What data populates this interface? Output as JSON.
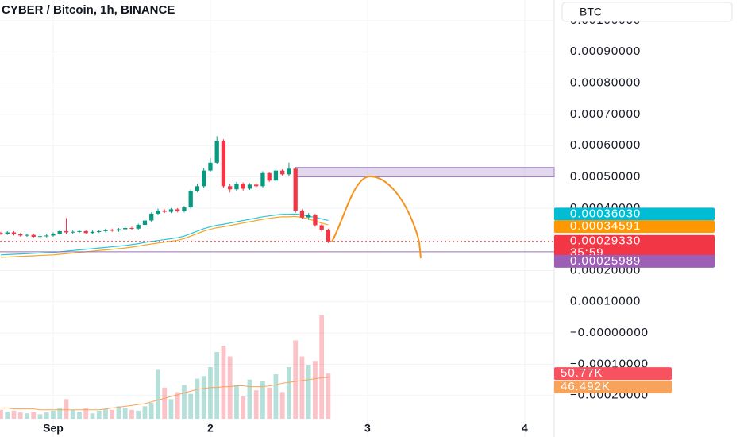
{
  "chart_data": {
    "type": "candlestick",
    "title": "CYBER / Bitcoin, 1h, BINANCE",
    "currency": "BTC",
    "x": [
      -8,
      -7,
      -6,
      -5,
      -4,
      -3,
      -2,
      -1,
      0,
      1,
      2,
      3,
      4,
      5,
      6,
      7,
      8,
      9,
      10,
      11,
      12,
      13,
      14,
      15,
      16,
      17,
      18,
      19,
      20,
      21,
      22,
      23,
      24,
      25,
      26,
      27,
      28,
      29,
      30,
      31,
      32,
      33,
      34,
      35,
      36,
      37,
      38,
      39,
      40,
      41,
      42
    ],
    "open": [
      0.00032,
      0.000318,
      0.000322,
      0.000316,
      0.000312,
      0.000314,
      0.000308,
      0.00031,
      0.000312,
      0.000318,
      0.000326,
      0.000322,
      0.000324,
      0.000326,
      0.00032,
      0.000324,
      0.000326,
      0.00033,
      0.000328,
      0.000332,
      0.000336,
      0.000334,
      0.000346,
      0.00036,
      0.000382,
      0.000392,
      0.000388,
      0.000396,
      0.00039,
      0.000402,
      0.000455,
      0.00047,
      0.00052,
      0.000545,
      0.000615,
      0.00047,
      0.00046,
      0.000478,
      0.000462,
      0.000475,
      0.00047,
      0.000512,
      0.000488,
      0.00052,
      0.000508,
      0.000526,
      0.000392,
      0.00037,
      0.000378,
      0.000345,
      0.00033
    ],
    "high": [
      0.000324,
      0.000326,
      0.000326,
      0.00032,
      0.000318,
      0.000318,
      0.000314,
      0.000316,
      0.000322,
      0.00033,
      0.000368,
      0.000328,
      0.00033,
      0.00033,
      0.000328,
      0.00033,
      0.000334,
      0.000334,
      0.000336,
      0.00034,
      0.00034,
      0.00035,
      0.000364,
      0.000386,
      0.000398,
      0.000396,
      0.0004,
      0.0004,
      0.000406,
      0.00046,
      0.000478,
      0.000528,
      0.00056,
      0.00063,
      0.00062,
      0.000478,
      0.000484,
      0.000482,
      0.00048,
      0.00048,
      0.000518,
      0.000515,
      0.000526,
      0.000524,
      0.000545,
      0.00053,
      0.000396,
      0.000384,
      0.000382,
      0.00035,
      0.000334
    ],
    "low": [
      0.000314,
      0.000314,
      0.000312,
      0.000308,
      0.000308,
      0.000304,
      0.000304,
      0.000306,
      0.000308,
      0.000314,
      0.000318,
      0.000318,
      0.00032,
      0.000316,
      0.000316,
      0.00032,
      0.000322,
      0.000324,
      0.000324,
      0.000328,
      0.00033,
      0.00033,
      0.000342,
      0.000356,
      0.000378,
      0.000384,
      0.000384,
      0.000386,
      0.000386,
      0.000398,
      0.00045,
      0.000465,
      0.000515,
      0.00054,
      0.000465,
      0.00045,
      0.000455,
      0.000456,
      0.000458,
      0.000464,
      0.000466,
      0.000484,
      0.000484,
      0.000504,
      0.000504,
      0.000385,
      0.000364,
      0.000362,
      0.00034,
      0.000324,
      0.000288
    ],
    "close": [
      0.000318,
      0.000322,
      0.000316,
      0.000312,
      0.000314,
      0.000308,
      0.00031,
      0.000312,
      0.000318,
      0.000326,
      0.000322,
      0.000324,
      0.000326,
      0.00032,
      0.000324,
      0.000326,
      0.00033,
      0.000328,
      0.000332,
      0.000336,
      0.000334,
      0.000346,
      0.00036,
      0.000382,
      0.000392,
      0.000388,
      0.000396,
      0.00039,
      0.000402,
      0.000455,
      0.00047,
      0.00052,
      0.000545,
      0.000615,
      0.00047,
      0.00046,
      0.000478,
      0.000462,
      0.000475,
      0.00047,
      0.000512,
      0.000488,
      0.00052,
      0.000508,
      0.000526,
      0.000392,
      0.00037,
      0.000378,
      0.000345,
      0.00033,
      0.000293
    ],
    "up_color": "#089981",
    "down_color": "#f23645",
    "xlim": [
      -8.12,
      76.5
    ],
    "xticks": [
      {
        "value": 0,
        "label": "Sep"
      },
      {
        "value": 24,
        "label": "2"
      },
      {
        "value": 48,
        "label": "3"
      },
      {
        "value": 72,
        "label": "4"
      }
    ],
    "ylim": [
      -0.000333,
      0.001066
    ],
    "yticks": [
      {
        "value": 0.001,
        "label": "0.00100000"
      },
      {
        "value": 0.0009,
        "label": "0.00090000"
      },
      {
        "value": 0.0008,
        "label": "0.00080000"
      },
      {
        "value": 0.0007,
        "label": "0.00070000"
      },
      {
        "value": 0.0006,
        "label": "0.00060000"
      },
      {
        "value": 0.0005,
        "label": "0.00050000"
      },
      {
        "value": 0.0004,
        "label": "0.00040000"
      },
      {
        "value": 0.0002,
        "label": "0.00020000"
      },
      {
        "value": 0.0001,
        "label": "0.00010000"
      },
      {
        "value": 0,
        "label": "−0.00000000"
      },
      {
        "value": -0.0001,
        "label": "−0.00010000"
      },
      {
        "value": -0.0002,
        "label": "−0.00020000"
      }
    ],
    "grid": true,
    "moving_averages": [
      {
        "color": "#26c6da",
        "values": [
          0.00025,
          0.000251,
          0.000252,
          0.000253,
          0.000254,
          0.000255,
          0.000256,
          0.000257,
          0.000258,
          0.00026,
          0.000262,
          0.000264,
          0.000266,
          0.000268,
          0.00027,
          0.000272,
          0.000274,
          0.000276,
          0.000278,
          0.00028,
          0.000283,
          0.000286,
          0.00029,
          0.000293,
          0.000296,
          0.000299,
          0.000302,
          0.000305,
          0.00031,
          0.000318,
          0.000326,
          0.000334,
          0.00034,
          0.000345,
          0.000348,
          0.000352,
          0.000356,
          0.00036,
          0.000364,
          0.000368,
          0.000372,
          0.000375,
          0.000378,
          0.00038,
          0.00038,
          0.000381,
          0.000378,
          0.000374,
          0.00037,
          0.000365,
          0.0003603
        ]
      },
      {
        "color": "#f5a623",
        "values": [
          0.000242,
          0.000243,
          0.000244,
          0.000245,
          0.000246,
          0.000247,
          0.000248,
          0.000249,
          0.00025,
          0.000252,
          0.000254,
          0.000256,
          0.000258,
          0.00026,
          0.000262,
          0.000264,
          0.000266,
          0.000268,
          0.00027,
          0.000272,
          0.000275,
          0.000278,
          0.000282,
          0.000285,
          0.000288,
          0.000291,
          0.000294,
          0.000297,
          0.000302,
          0.00031,
          0.000318,
          0.000326,
          0.000332,
          0.000337,
          0.00034,
          0.000344,
          0.000348,
          0.000352,
          0.000356,
          0.00036,
          0.000364,
          0.000367,
          0.00037,
          0.000372,
          0.000372,
          0.000373,
          0.00037,
          0.000365,
          0.000358,
          0.000352,
          0.00034591
        ]
      }
    ],
    "volume": {
      "values": [
        10,
        8,
        9,
        7,
        6,
        8,
        5,
        7,
        9,
        12,
        22,
        10,
        8,
        12,
        6,
        9,
        11,
        10,
        14,
        12,
        10,
        9,
        14,
        18,
        55,
        35,
        22,
        30,
        38,
        28,
        45,
        48,
        58,
        75,
        82,
        70,
        38,
        25,
        44,
        32,
        42,
        35,
        50,
        30,
        58,
        88,
        70,
        60,
        65,
        116,
        50.77
      ],
      "ma": [
        12,
        12,
        11,
        11,
        11,
        11,
        10,
        10,
        10,
        10,
        10,
        10,
        10,
        10,
        10,
        10,
        11,
        12,
        13,
        14,
        15,
        16,
        17,
        19,
        21,
        23,
        25,
        27,
        29,
        31,
        33,
        34,
        35,
        35,
        36,
        36,
        37,
        37,
        36,
        36,
        36,
        37,
        38,
        40,
        41,
        42,
        43,
        44,
        45,
        46,
        46.492
      ],
      "ma_color": "#f7a35c",
      "ylim": [
        0,
        150
      ]
    },
    "zone": {
      "from": 37,
      "bottom": 0.0005,
      "top": 0.00053,
      "color": "#9c7fc8"
    },
    "lines": [
      {
        "value": 0.0002933,
        "color": "#f23645",
        "style": "dotted"
      },
      {
        "value": 0.00025989,
        "color": "#9c6fb5",
        "style": "solid"
      }
    ],
    "price_labels": [
      {
        "value": 0.0003603,
        "label": "0.00036030",
        "color": "#00bcd4"
      },
      {
        "value": 0.00034591,
        "label": "0.00034591",
        "color": "#ff9800"
      },
      {
        "value": 0.0002933,
        "label": "0.00029330",
        "color": "#f23645",
        "countdown": "35:59"
      },
      {
        "value": 0.00025989,
        "label": "0.00025989",
        "color": "#9c5fb5"
      }
    ],
    "volume_labels": [
      {
        "value": 50.77,
        "label": "50.77K",
        "color": "#f7525f"
      },
      {
        "value": 46.492,
        "label": "46.492K",
        "color": "#f7a35c"
      }
    ]
  }
}
